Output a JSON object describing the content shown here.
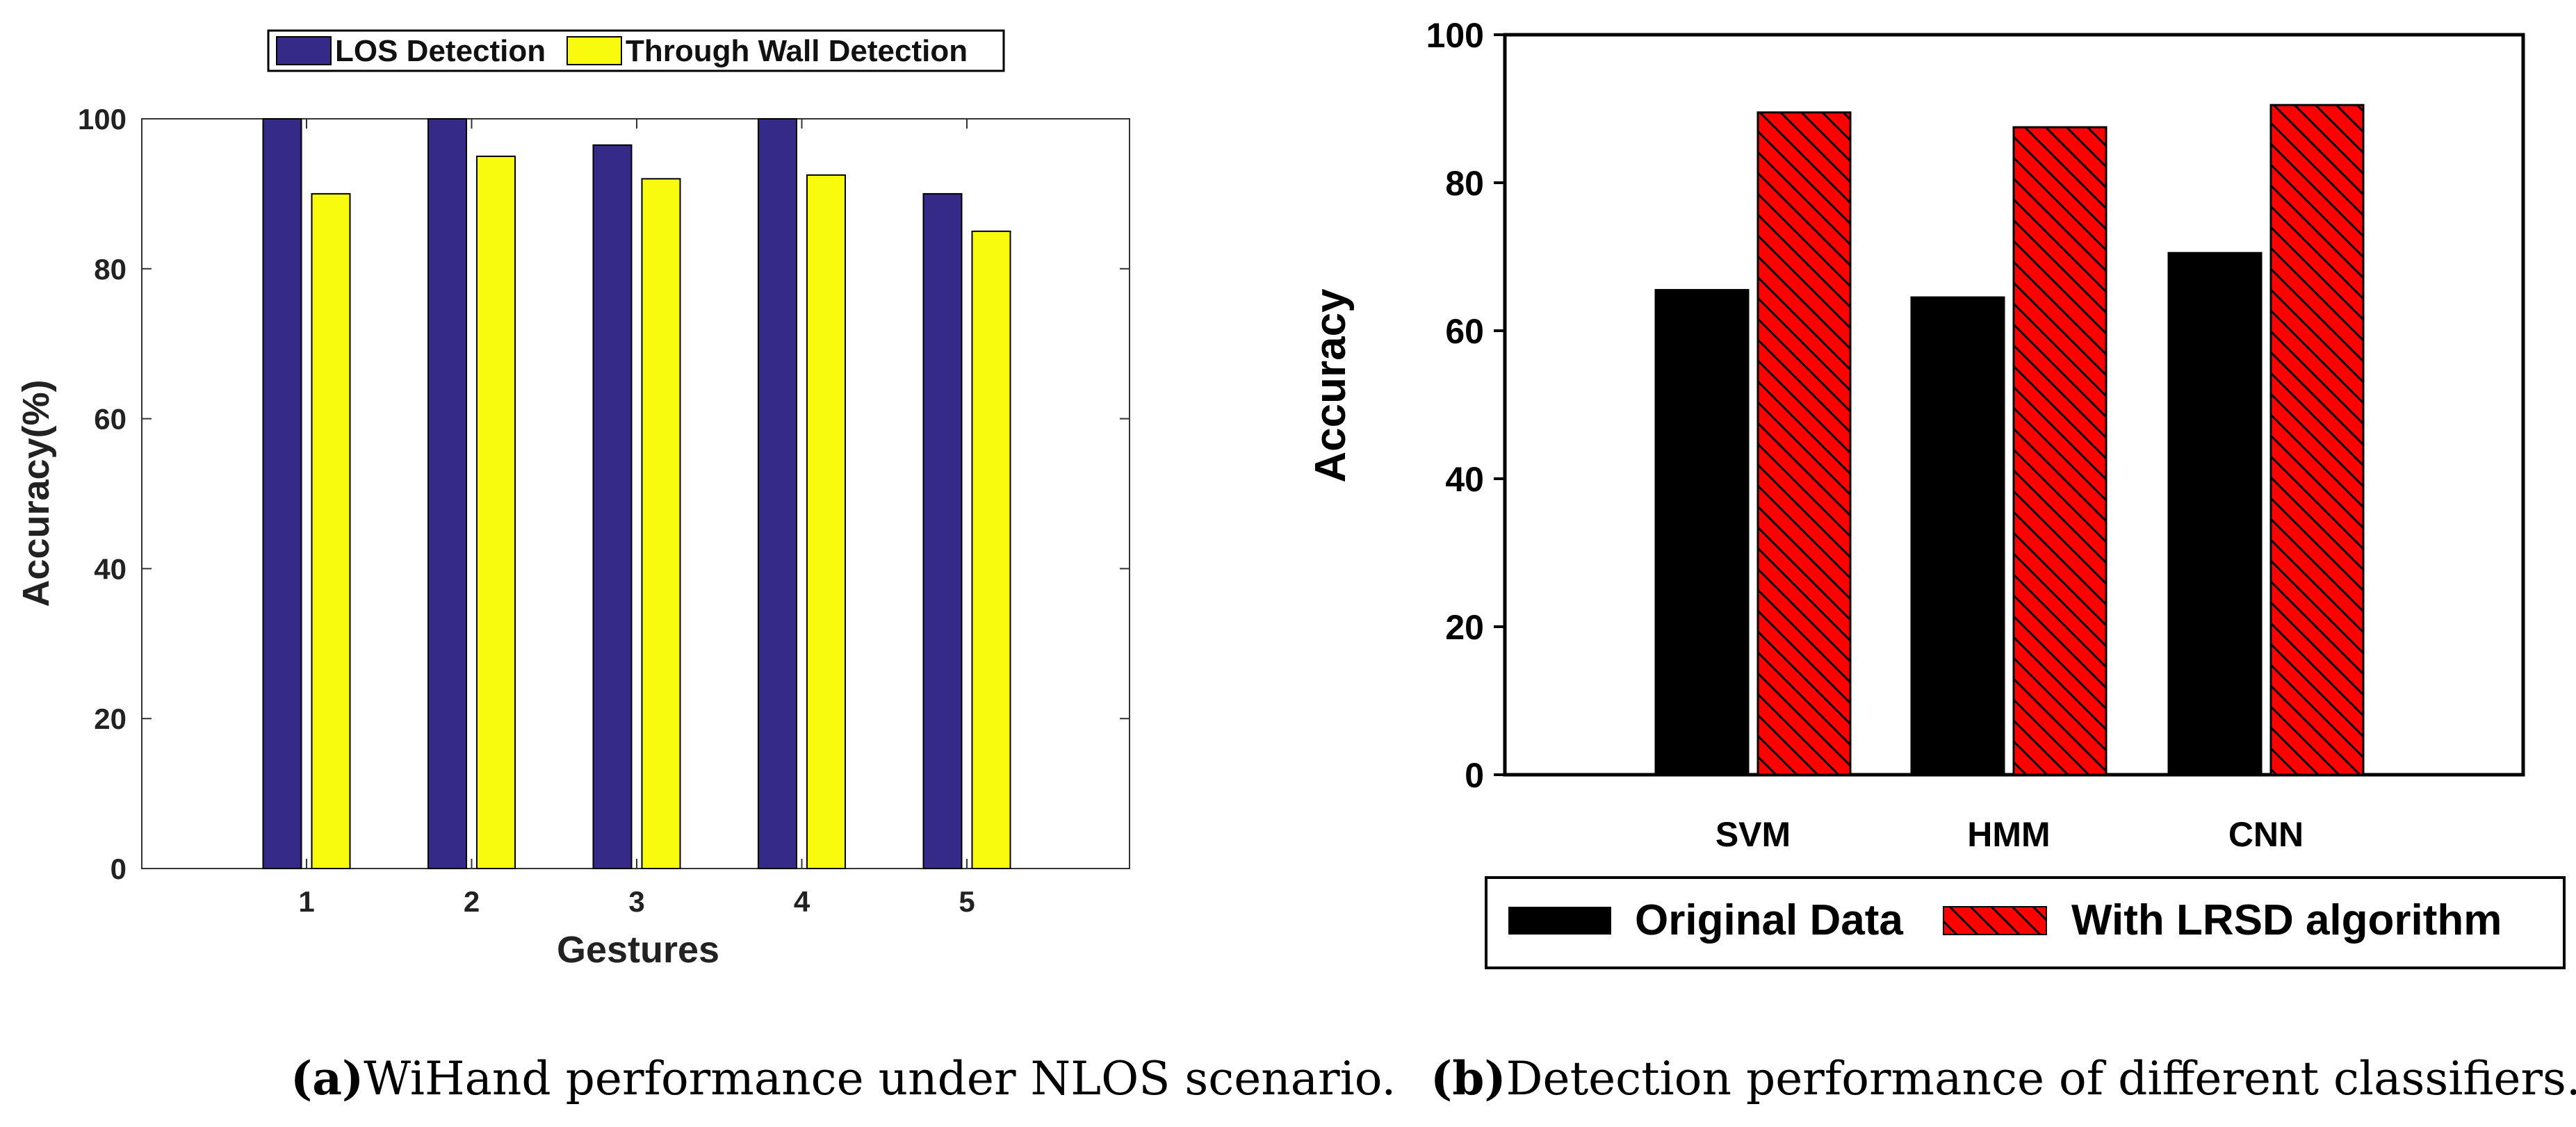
{
  "chart_data": [
    {
      "type": "bar",
      "title": "",
      "xlabel": "Gestures",
      "ylabel": "Accuracy(%)",
      "categories": [
        "1",
        "2",
        "3",
        "4",
        "5"
      ],
      "yticks": [
        "0",
        "20",
        "40",
        "60",
        "80",
        "100"
      ],
      "ylim": [
        0,
        100
      ],
      "legend_position": "top",
      "series": [
        {
          "name": "LOS Detection",
          "color": "#352a87",
          "values": [
            100,
            100,
            96.5,
            100,
            90
          ]
        },
        {
          "name": "Through Wall Detection",
          "color": "#f9fb0e",
          "values": [
            90,
            95,
            92,
            92.5,
            85
          ]
        }
      ],
      "caption_label": "(a)",
      "caption_text": "WiHand performance under NLOS scenario."
    },
    {
      "type": "bar",
      "title": "",
      "xlabel": "",
      "ylabel": "Accuracy",
      "categories": [
        "SVM",
        "HMM",
        "CNN"
      ],
      "yticks": [
        "0",
        "20",
        "40",
        "60",
        "80",
        "100"
      ],
      "ylim": [
        0,
        100
      ],
      "legend_position": "bottom",
      "series": [
        {
          "name": "Original Data",
          "color": "#000000",
          "values": [
            65.5,
            64.5,
            70.5
          ]
        },
        {
          "name": "With LRSD algorithm",
          "color": "#ff0000",
          "values": [
            89.5,
            87.5,
            90.5
          ]
        }
      ],
      "caption_label": "(b)",
      "caption_text": "Detection performance of different classifiers."
    }
  ]
}
